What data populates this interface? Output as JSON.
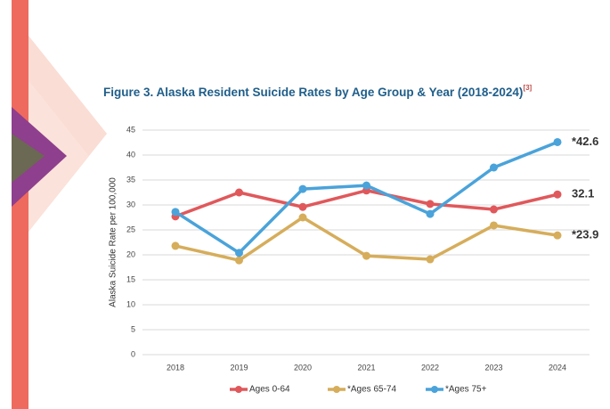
{
  "chart_data": {
    "type": "line",
    "title": "Figure 3. Alaska Resident Suicide Rates by Age Group & Year (2018-2024)",
    "title_superscript": "[3]",
    "y_label": "Alaska Suicide Rate per 100,000",
    "categories": [
      "2018",
      "2019",
      "2020",
      "2021",
      "2022",
      "2023",
      "2024"
    ],
    "series": [
      {
        "name": "Ages 0-64",
        "color": "#e0585b",
        "values": [
          27.7,
          32.5,
          29.6,
          32.9,
          30.2,
          29.1,
          32.1
        ],
        "value_labels": [
          null,
          null,
          null,
          null,
          null,
          null,
          "32.1"
        ]
      },
      {
        "name": "*Ages 65-74",
        "color": "#d6ad5b",
        "values": [
          21.8,
          18.9,
          27.5,
          19.8,
          19.1,
          25.9,
          23.9
        ],
        "value_labels": [
          null,
          null,
          null,
          null,
          null,
          null,
          "*23.9"
        ]
      },
      {
        "name": "*Ages 75+",
        "color": "#4aa3da",
        "values": [
          28.6,
          20.4,
          33.2,
          33.9,
          28.2,
          37.5,
          42.6
        ],
        "value_labels": [
          null,
          null,
          null,
          null,
          null,
          null,
          "*42.6"
        ]
      }
    ],
    "ylim": [
      0,
      45
    ],
    "yticks": [
      0,
      5,
      10,
      15,
      20,
      25,
      30,
      35,
      40,
      45
    ],
    "grid": true
  }
}
